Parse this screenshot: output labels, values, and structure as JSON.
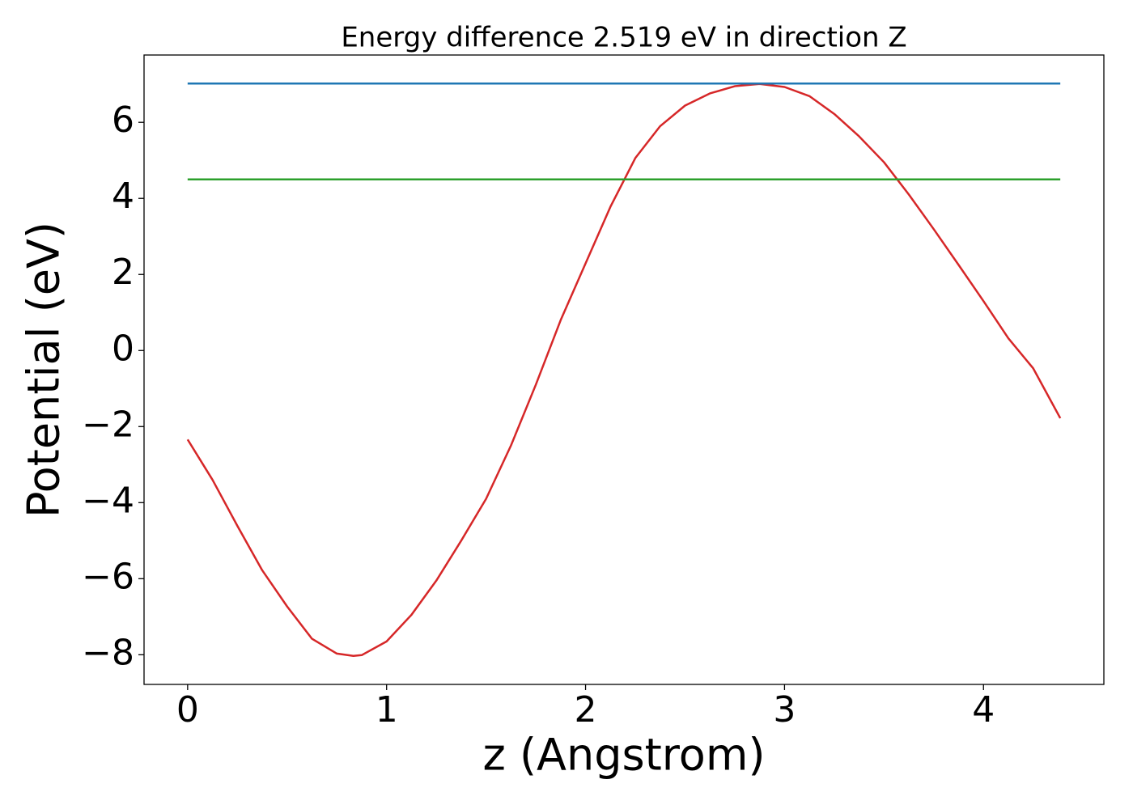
{
  "chart_data": {
    "type": "line",
    "title": "Energy difference 2.519 eV in direction Z",
    "xlabel": "z (Angstrom)",
    "ylabel": "Potential (eV)",
    "xlim": [
      -0.219,
      4.605
    ],
    "ylim": [
      -8.78,
      7.77
    ],
    "xticks": [
      0,
      1,
      2,
      3,
      4
    ],
    "yticks": [
      {
        "value": -8,
        "label": "−8"
      },
      {
        "value": -6,
        "label": "−6"
      },
      {
        "value": -4,
        "label": "−4"
      },
      {
        "value": -2,
        "label": "−2"
      },
      0,
      2,
      4,
      6
    ],
    "series": [
      {
        "color": "#d62728",
        "x": [
          0,
          0.0625,
          0.125,
          0.25,
          0.375,
          0.5,
          0.625,
          0.75,
          0.833,
          0.875,
          1.0,
          1.125,
          1.25,
          1.375,
          1.5,
          1.625,
          1.75,
          1.875,
          2.0,
          2.125,
          2.25,
          2.375,
          2.5,
          2.625,
          2.75,
          2.875,
          3.0,
          3.125,
          3.25,
          3.375,
          3.5,
          3.625,
          3.75,
          3.875,
          4.0,
          4.125,
          4.25,
          4.386
        ],
        "values": [
          -2.34,
          -2.87,
          -3.4,
          -4.61,
          -5.78,
          -6.73,
          -7.58,
          -7.97,
          -8.03,
          -8.01,
          -7.65,
          -6.95,
          -6.05,
          -5.0,
          -3.9,
          -2.5,
          -0.9,
          0.8,
          2.29,
          3.78,
          5.06,
          5.9,
          6.44,
          6.76,
          6.95,
          7.01,
          6.93,
          6.69,
          6.22,
          5.63,
          4.95,
          4.1,
          3.19,
          2.25,
          1.3,
          0.32,
          -0.47,
          -1.78
        ]
      },
      {
        "color": "#1f77b4",
        "x": [
          0,
          4.386
        ],
        "values": [
          7.02,
          7.02
        ]
      },
      {
        "color": "#2ca02c",
        "x": [
          0,
          4.386
        ],
        "values": [
          4.5,
          4.5
        ]
      }
    ]
  }
}
